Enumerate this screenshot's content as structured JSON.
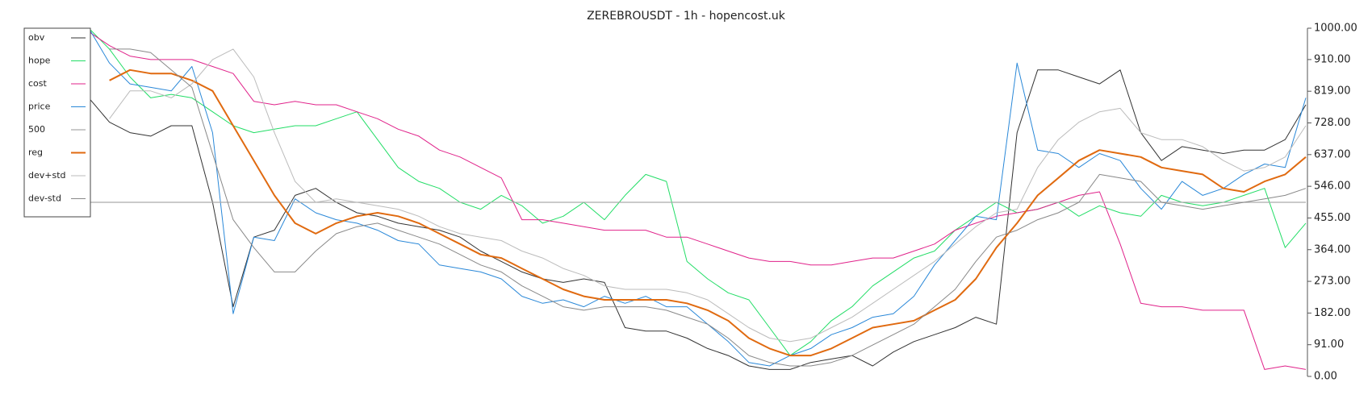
{
  "chart_data": {
    "type": "line",
    "title": "ZEREBROUSDT - 1h - hopencost.uk",
    "ylim": [
      0,
      1000
    ],
    "yticks": [
      {
        "value": 0,
        "label": "0.00"
      },
      {
        "value": 91,
        "label": "91.00"
      },
      {
        "value": 182,
        "label": "182.00"
      },
      {
        "value": 273,
        "label": "273.00"
      },
      {
        "value": 364,
        "label": "364.00"
      },
      {
        "value": 455,
        "label": "455.00"
      },
      {
        "value": 546,
        "label": "546.00"
      },
      {
        "value": 637,
        "label": "637.00"
      },
      {
        "value": 728,
        "label": "728.00"
      },
      {
        "value": 819,
        "label": "819.00"
      },
      {
        "value": 910,
        "label": "910.00"
      },
      {
        "value": 1000,
        "label": "1000.00"
      }
    ],
    "legend": "upper left",
    "series": [
      {
        "name": "obv",
        "color": "#333333",
        "width": 1,
        "values": [
          800,
          730,
          700,
          690,
          720,
          720,
          500,
          200,
          400,
          420,
          520,
          540,
          500,
          470,
          460,
          440,
          430,
          420,
          400,
          360,
          330,
          300,
          280,
          270,
          280,
          270,
          140,
          130,
          130,
          110,
          80,
          60,
          30,
          20,
          20,
          40,
          50,
          60,
          30,
          70,
          100,
          120,
          140,
          170,
          150,
          700,
          880,
          880,
          860,
          840,
          880,
          700,
          620,
          660,
          650,
          640,
          650,
          650,
          680,
          780
        ]
      },
      {
        "name": "hope",
        "color": "#22dd66",
        "width": 1,
        "values": [
          1000,
          940,
          860,
          800,
          810,
          800,
          760,
          720,
          700,
          710,
          720,
          720,
          740,
          760,
          680,
          600,
          560,
          540,
          500,
          480,
          520,
          490,
          440,
          460,
          500,
          450,
          520,
          580,
          560,
          330,
          280,
          240,
          220,
          140,
          60,
          100,
          160,
          200,
          260,
          300,
          340,
          360,
          420,
          460,
          500,
          470,
          480,
          500,
          460,
          490,
          470,
          460,
          520,
          500,
          490,
          500,
          520,
          540,
          370,
          440
        ]
      },
      {
        "name": "cost",
        "color": "#e0228a",
        "width": 1,
        "values": [
          990,
          950,
          920,
          910,
          910,
          910,
          890,
          870,
          790,
          780,
          790,
          780,
          780,
          760,
          740,
          710,
          690,
          650,
          630,
          600,
          570,
          450,
          450,
          440,
          430,
          420,
          420,
          420,
          400,
          400,
          380,
          360,
          340,
          330,
          330,
          320,
          320,
          330,
          340,
          340,
          360,
          380,
          420,
          440,
          460,
          470,
          480,
          500,
          520,
          530,
          380,
          210,
          200,
          200,
          190,
          190,
          190,
          20,
          30,
          20
        ]
      },
      {
        "name": "price",
        "color": "#2a88d8",
        "width": 1,
        "values": [
          1000,
          900,
          840,
          830,
          820,
          890,
          700,
          180,
          400,
          390,
          510,
          470,
          450,
          440,
          420,
          390,
          380,
          320,
          310,
          300,
          280,
          230,
          210,
          220,
          200,
          230,
          210,
          230,
          200,
          200,
          150,
          100,
          40,
          30,
          60,
          80,
          120,
          140,
          170,
          180,
          230,
          320,
          390,
          460,
          450,
          900,
          650,
          640,
          600,
          640,
          620,
          540,
          480,
          560,
          520,
          540,
          580,
          610,
          600,
          800
        ]
      },
      {
        "name": "500",
        "color": "#aaaaaa",
        "width": 1.3,
        "values": [
          500,
          500,
          500,
          500,
          500,
          500,
          500,
          500,
          500,
          500,
          500,
          500,
          500,
          500,
          500,
          500,
          500,
          500,
          500,
          500,
          500,
          500,
          500,
          500,
          500,
          500,
          500,
          500,
          500,
          500,
          500,
          500,
          500,
          500,
          500,
          500,
          500,
          500,
          500,
          500,
          500,
          500,
          500,
          500,
          500,
          500,
          500,
          500,
          500,
          500,
          500,
          500,
          500,
          500,
          500,
          500,
          500,
          500,
          500,
          500
        ]
      },
      {
        "name": "reg",
        "color": "#e06a10",
        "width": 2,
        "values": [
          null,
          850,
          880,
          870,
          870,
          850,
          820,
          720,
          620,
          520,
          440,
          410,
          440,
          460,
          470,
          460,
          440,
          410,
          380,
          350,
          340,
          310,
          280,
          250,
          230,
          220,
          220,
          220,
          220,
          210,
          190,
          160,
          110,
          80,
          60,
          60,
          80,
          110,
          140,
          150,
          160,
          190,
          220,
          280,
          370,
          440,
          520,
          570,
          620,
          650,
          640,
          630,
          600,
          590,
          580,
          540,
          530,
          560,
          580,
          630
        ]
      },
      {
        "name": "dev+std",
        "color": "#bbbbbb",
        "width": 1,
        "values": [
          null,
          740,
          820,
          820,
          800,
          840,
          910,
          940,
          860,
          700,
          560,
          500,
          510,
          500,
          490,
          480,
          460,
          430,
          410,
          400,
          390,
          360,
          340,
          310,
          290,
          260,
          250,
          250,
          250,
          240,
          220,
          180,
          140,
          110,
          100,
          110,
          140,
          170,
          210,
          250,
          290,
          330,
          380,
          430,
          470,
          480,
          600,
          680,
          730,
          760,
          770,
          700,
          680,
          680,
          660,
          620,
          590,
          600,
          630,
          720
        ]
      },
      {
        "name": "dev-std",
        "color": "#888888",
        "width": 1,
        "values": [
          null,
          940,
          940,
          930,
          880,
          830,
          640,
          450,
          370,
          300,
          300,
          360,
          410,
          430,
          440,
          420,
          400,
          380,
          350,
          320,
          300,
          260,
          230,
          200,
          190,
          200,
          200,
          200,
          190,
          170,
          150,
          110,
          60,
          40,
          30,
          30,
          40,
          60,
          90,
          120,
          150,
          200,
          250,
          330,
          400,
          420,
          450,
          470,
          500,
          580,
          570,
          560,
          500,
          490,
          480,
          490,
          500,
          510,
          520,
          540
        ]
      }
    ]
  }
}
